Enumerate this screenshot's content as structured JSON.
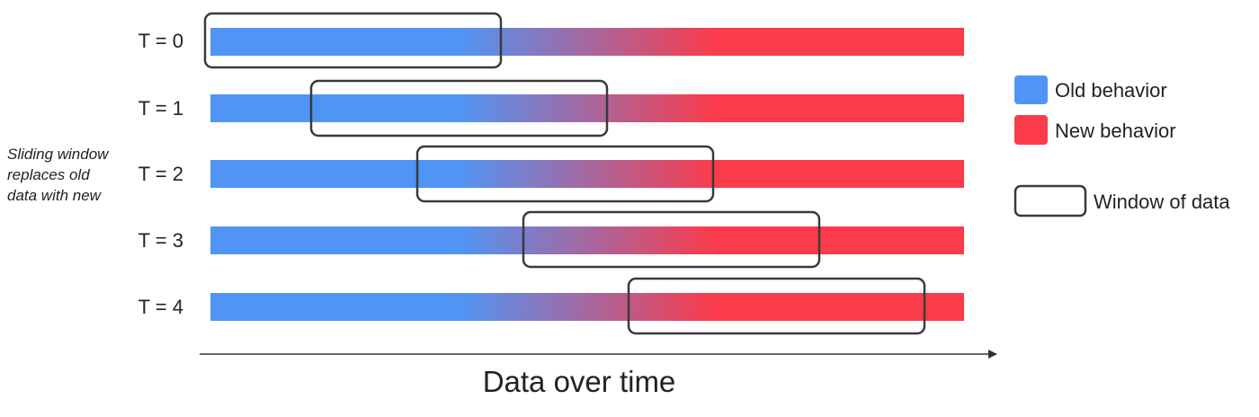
{
  "rows": [
    {
      "label": "T = 0"
    },
    {
      "label": "T = 1"
    },
    {
      "label": "T = 2"
    },
    {
      "label": "T = 3"
    },
    {
      "label": "T = 4"
    }
  ],
  "side_note": {
    "line1": "Sliding window",
    "line2": "replaces old",
    "line3": "data with new"
  },
  "x_axis": {
    "label": "Data over time"
  },
  "legend": {
    "old": {
      "label": "Old behavior",
      "color": "#5095f5"
    },
    "new": {
      "label": "New behavior",
      "color": "#fa3b4a"
    },
    "window": {
      "label": "Window of data",
      "color": "#3a3a3a"
    }
  }
}
